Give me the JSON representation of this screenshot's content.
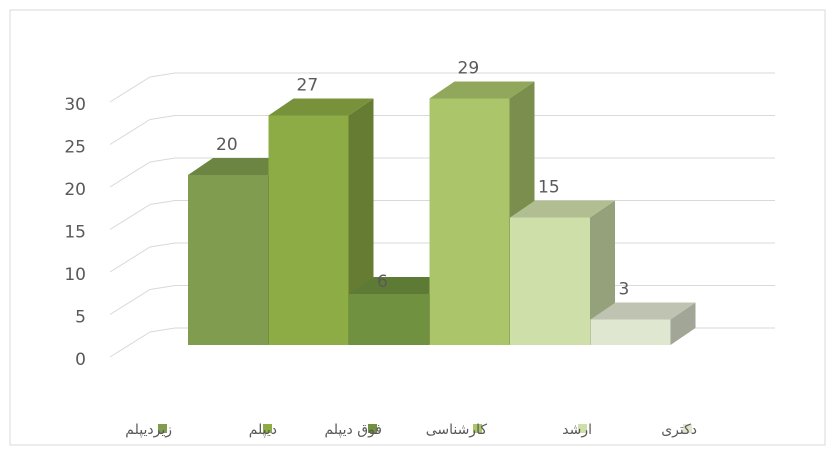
{
  "chart_data": {
    "type": "bar3d",
    "series": [
      {
        "name": "زیردیپلم",
        "color": "#7f9c4f",
        "values": [
          20
        ]
      },
      {
        "name": "دیپلم",
        "color": "#8dac45",
        "values": [
          27
        ]
      },
      {
        "name": "فوق دیپلم",
        "color": "#6f9140",
        "values": [
          6
        ]
      },
      {
        "name": "کارشناسی",
        "color": "#abc56b",
        "values": [
          29
        ]
      },
      {
        "name": "ارشد",
        "color": "#cfdfaa",
        "values": [
          15
        ]
      },
      {
        "name": "دکتری",
        "color": "#dfe7d0",
        "values": [
          3
        ]
      }
    ],
    "ylim": [
      0,
      30
    ],
    "yticks": [
      0,
      5,
      10,
      15,
      20,
      25,
      30
    ],
    "grid": true
  }
}
